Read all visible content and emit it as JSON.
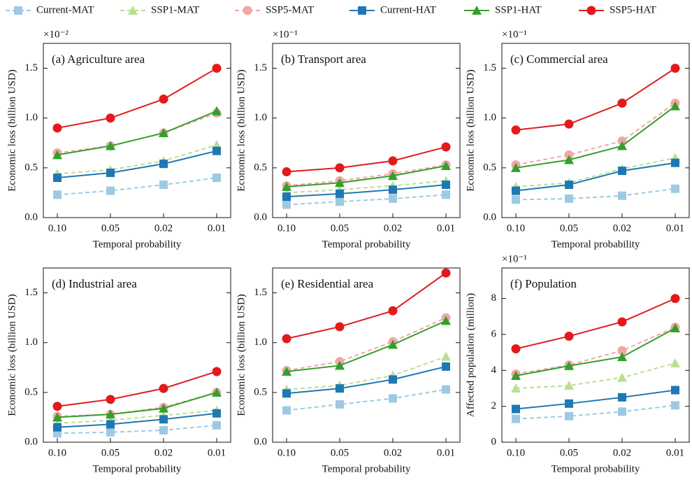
{
  "chart_data": [
    {
      "type": "line",
      "title": "(a) Agriculture area",
      "scale_label": "×10⁻²",
      "xlabel": "Temporal probability",
      "ylabel": "Economic loss (billion USD)",
      "categories": [
        "0.10",
        "0.05",
        "0.02",
        "0.01"
      ],
      "ylim": [
        0,
        1.75
      ],
      "yticks": [
        {
          "value": 0,
          "label": "0.0"
        },
        0.5,
        {
          "value": 1,
          "label": "1.0"
        },
        1.5
      ],
      "series": [
        {
          "name": "Current-MAT",
          "color": "#9ecae1",
          "marker": "square",
          "linestyle": "dashed",
          "values": [
            0.23,
            0.27,
            0.33,
            0.4
          ]
        },
        {
          "name": "SSP1-MAT",
          "color": "#b8e094",
          "marker": "triangle",
          "linestyle": "dashed",
          "values": [
            0.44,
            0.48,
            0.57,
            0.73
          ]
        },
        {
          "name": "SSP5-MAT",
          "color": "#f4a6a6",
          "marker": "circle",
          "linestyle": "dashed",
          "values": [
            0.65,
            0.72,
            0.85,
            1.05
          ]
        },
        {
          "name": "Current-HAT",
          "color": "#1f78b4",
          "marker": "square",
          "linestyle": "solid",
          "values": [
            0.4,
            0.45,
            0.54,
            0.67
          ]
        },
        {
          "name": "SSP1-HAT",
          "color": "#33a02c",
          "marker": "triangle",
          "linestyle": "solid",
          "values": [
            0.63,
            0.72,
            0.85,
            1.07
          ]
        },
        {
          "name": "SSP5-HAT",
          "color": "#e31a1c",
          "marker": "circle",
          "linestyle": "solid",
          "values": [
            0.9,
            1.0,
            1.19,
            1.5
          ]
        }
      ]
    },
    {
      "type": "line",
      "title": "(b) Transport area",
      "scale_label": "×10⁻¹",
      "xlabel": "Temporal probability",
      "ylabel": "Economic loss (billion USD)",
      "categories": [
        "0.10",
        "0.05",
        "0.02",
        "0.01"
      ],
      "ylim": [
        0,
        1.75
      ],
      "yticks": [
        {
          "value": 0,
          "label": "0.0"
        },
        0.5,
        {
          "value": 1,
          "label": "1.0"
        },
        1.5
      ],
      "series": [
        {
          "name": "Current-MAT",
          "color": "#9ecae1",
          "marker": "square",
          "linestyle": "dashed",
          "values": [
            0.13,
            0.16,
            0.19,
            0.23
          ]
        },
        {
          "name": "SSP1-MAT",
          "color": "#b8e094",
          "marker": "triangle",
          "linestyle": "dashed",
          "values": [
            0.25,
            0.28,
            0.32,
            0.37
          ]
        },
        {
          "name": "SSP5-MAT",
          "color": "#f4a6a6",
          "marker": "circle",
          "linestyle": "dashed",
          "values": [
            0.32,
            0.37,
            0.44,
            0.53
          ]
        },
        {
          "name": "Current-HAT",
          "color": "#1f78b4",
          "marker": "square",
          "linestyle": "solid",
          "values": [
            0.21,
            0.24,
            0.28,
            0.33
          ]
        },
        {
          "name": "SSP1-HAT",
          "color": "#33a02c",
          "marker": "triangle",
          "linestyle": "solid",
          "values": [
            0.31,
            0.35,
            0.42,
            0.52
          ]
        },
        {
          "name": "SSP5-HAT",
          "color": "#e31a1c",
          "marker": "circle",
          "linestyle": "solid",
          "values": [
            0.46,
            0.5,
            0.57,
            0.71
          ]
        }
      ]
    },
    {
      "type": "line",
      "title": "(c) Commercial area",
      "scale_label": "×10⁻¹",
      "xlabel": "Temporal probability",
      "ylabel": "Economic loss (billion USD)",
      "categories": [
        "0.10",
        "0.05",
        "0.02",
        "0.01"
      ],
      "ylim": [
        0,
        1.75
      ],
      "yticks": [
        {
          "value": 0,
          "label": "0.0"
        },
        0.5,
        {
          "value": 1,
          "label": "1.0"
        },
        1.5
      ],
      "series": [
        {
          "name": "Current-MAT",
          "color": "#9ecae1",
          "marker": "square",
          "linestyle": "dashed",
          "values": [
            0.18,
            0.19,
            0.22,
            0.29
          ]
        },
        {
          "name": "SSP1-MAT",
          "color": "#b8e094",
          "marker": "triangle",
          "linestyle": "dashed",
          "values": [
            0.31,
            0.35,
            0.49,
            0.6
          ]
        },
        {
          "name": "SSP5-MAT",
          "color": "#f4a6a6",
          "marker": "circle",
          "linestyle": "dashed",
          "values": [
            0.53,
            0.63,
            0.77,
            1.15
          ]
        },
        {
          "name": "Current-HAT",
          "color": "#1f78b4",
          "marker": "square",
          "linestyle": "solid",
          "values": [
            0.27,
            0.33,
            0.47,
            0.55
          ]
        },
        {
          "name": "SSP1-HAT",
          "color": "#33a02c",
          "marker": "triangle",
          "linestyle": "solid",
          "values": [
            0.5,
            0.58,
            0.72,
            1.12
          ]
        },
        {
          "name": "SSP5-HAT",
          "color": "#e31a1c",
          "marker": "circle",
          "linestyle": "solid",
          "values": [
            0.88,
            0.94,
            1.15,
            1.5
          ]
        }
      ]
    },
    {
      "type": "line",
      "title": "(d) Industrial area",
      "xlabel": "Temporal probability",
      "ylabel": "Economic loss (billion USD)",
      "categories": [
        "0.10",
        "0.05",
        "0.02",
        "0.01"
      ],
      "ylim": [
        0,
        1.75
      ],
      "yticks": [
        {
          "value": 0,
          "label": "0.0"
        },
        0.5,
        {
          "value": 1,
          "label": "1.0"
        },
        1.5
      ],
      "series": [
        {
          "name": "Current-MAT",
          "color": "#9ecae1",
          "marker": "square",
          "linestyle": "dashed",
          "values": [
            0.09,
            0.1,
            0.12,
            0.17
          ]
        },
        {
          "name": "SSP1-MAT",
          "color": "#b8e094",
          "marker": "triangle",
          "linestyle": "dashed",
          "values": [
            0.19,
            0.22,
            0.27,
            0.32
          ]
        },
        {
          "name": "SSP5-MAT",
          "color": "#f4a6a6",
          "marker": "circle",
          "linestyle": "dashed",
          "values": [
            0.26,
            0.28,
            0.35,
            0.5
          ]
        },
        {
          "name": "Current-HAT",
          "color": "#1f78b4",
          "marker": "square",
          "linestyle": "solid",
          "values": [
            0.15,
            0.18,
            0.23,
            0.29
          ]
        },
        {
          "name": "SSP1-HAT",
          "color": "#33a02c",
          "marker": "triangle",
          "linestyle": "solid",
          "values": [
            0.25,
            0.28,
            0.34,
            0.5
          ]
        },
        {
          "name": "SSP5-HAT",
          "color": "#e31a1c",
          "marker": "circle",
          "linestyle": "solid",
          "values": [
            0.36,
            0.43,
            0.54,
            0.71
          ]
        }
      ]
    },
    {
      "type": "line",
      "title": "(e) Residential area",
      "xlabel": "Temporal probability",
      "ylabel": "Economic loss (billion USD)",
      "categories": [
        "0.10",
        "0.05",
        "0.02",
        "0.01"
      ],
      "ylim": [
        0,
        1.75
      ],
      "yticks": [
        {
          "value": 0,
          "label": "0.0"
        },
        0.5,
        {
          "value": 1,
          "label": "1.0"
        },
        1.5
      ],
      "series": [
        {
          "name": "Current-MAT",
          "color": "#9ecae1",
          "marker": "square",
          "linestyle": "dashed",
          "values": [
            0.32,
            0.38,
            0.44,
            0.53
          ]
        },
        {
          "name": "SSP1-MAT",
          "color": "#b8e094",
          "marker": "triangle",
          "linestyle": "dashed",
          "values": [
            0.53,
            0.57,
            0.67,
            0.86
          ]
        },
        {
          "name": "SSP5-MAT",
          "color": "#f4a6a6",
          "marker": "circle",
          "linestyle": "dashed",
          "values": [
            0.72,
            0.81,
            1.01,
            1.25
          ]
        },
        {
          "name": "Current-HAT",
          "color": "#1f78b4",
          "marker": "square",
          "linestyle": "solid",
          "values": [
            0.49,
            0.54,
            0.63,
            0.76
          ]
        },
        {
          "name": "SSP1-HAT",
          "color": "#33a02c",
          "marker": "triangle",
          "linestyle": "solid",
          "values": [
            0.71,
            0.77,
            0.98,
            1.22
          ]
        },
        {
          "name": "SSP5-HAT",
          "color": "#e31a1c",
          "marker": "circle",
          "linestyle": "solid",
          "values": [
            1.04,
            1.16,
            1.32,
            1.7
          ]
        }
      ]
    },
    {
      "type": "line",
      "title": "(f) Population",
      "scale_label": "×10⁻¹",
      "xlabel": "Temporal probability",
      "ylabel": "Affected population (million)",
      "categories": [
        "0.10",
        "0.05",
        "0.02",
        "0.01"
      ],
      "ylim": [
        0,
        9.7
      ],
      "yticks": [
        0,
        2,
        4,
        6,
        8
      ],
      "series": [
        {
          "name": "Current-MAT",
          "color": "#9ecae1",
          "marker": "square",
          "linestyle": "dashed",
          "values": [
            1.3,
            1.45,
            1.7,
            2.05
          ]
        },
        {
          "name": "SSP1-MAT",
          "color": "#b8e094",
          "marker": "triangle",
          "linestyle": "dashed",
          "values": [
            3.0,
            3.15,
            3.6,
            4.4
          ]
        },
        {
          "name": "SSP5-MAT",
          "color": "#f4a6a6",
          "marker": "circle",
          "linestyle": "dashed",
          "values": [
            3.8,
            4.3,
            5.1,
            6.4
          ]
        },
        {
          "name": "Current-HAT",
          "color": "#1f78b4",
          "marker": "square",
          "linestyle": "solid",
          "values": [
            1.85,
            2.15,
            2.5,
            2.9
          ]
        },
        {
          "name": "SSP1-HAT",
          "color": "#33a02c",
          "marker": "triangle",
          "linestyle": "solid",
          "values": [
            3.7,
            4.25,
            4.75,
            6.35
          ]
        },
        {
          "name": "SSP5-HAT",
          "color": "#e31a1c",
          "marker": "circle",
          "linestyle": "solid",
          "values": [
            5.2,
            5.9,
            6.7,
            8.0
          ]
        }
      ]
    }
  ]
}
